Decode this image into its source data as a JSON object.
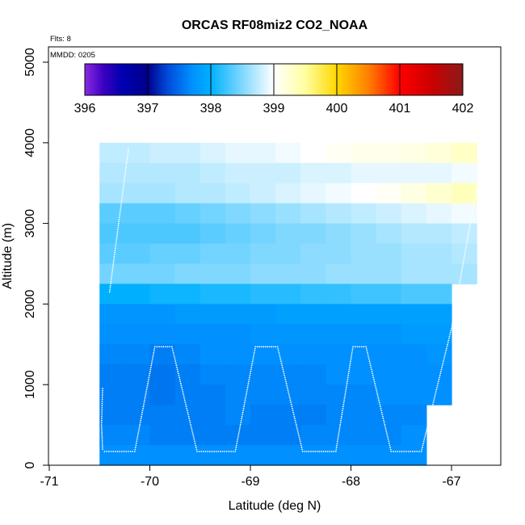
{
  "chart_data": {
    "type": "heatmap",
    "title": "ORCAS RF08miz2 CO2_NOAA",
    "annotations": {
      "flights": "Flts: 8",
      "date": "MMDD: 0205"
    },
    "xlabel": "Latitude (deg N)",
    "ylabel": "Altitude (m)",
    "xlim": [
      -71,
      -66.5
    ],
    "ylim": [
      0,
      5200
    ],
    "x_ticks": [
      -71,
      -70,
      -69,
      -68,
      -67
    ],
    "y_ticks": [
      0,
      1000,
      2000,
      3000,
      4000,
      5000
    ],
    "grid": false,
    "colorbar": {
      "position": "top-inside",
      "min": 396,
      "max": 402,
      "ticks": [
        396,
        397,
        398,
        399,
        400,
        401,
        402
      ],
      "stops": [
        {
          "value": 396.0,
          "color": "#8a2be2"
        },
        {
          "value": 396.3,
          "color": "#3a00c0"
        },
        {
          "value": 396.6,
          "color": "#0000b0"
        },
        {
          "value": 397.0,
          "color": "#00008b"
        },
        {
          "value": 397.3,
          "color": "#0048d8"
        },
        {
          "value": 397.7,
          "color": "#0090ff"
        },
        {
          "value": 398.0,
          "color": "#00b0ff"
        },
        {
          "value": 398.5,
          "color": "#80d8ff"
        },
        {
          "value": 399.0,
          "color": "#ffffff"
        },
        {
          "value": 399.5,
          "color": "#ffffa0"
        },
        {
          "value": 400.0,
          "color": "#ffd700"
        },
        {
          "value": 400.5,
          "color": "#ff8000"
        },
        {
          "value": 401.0,
          "color": "#ff0000"
        },
        {
          "value": 401.5,
          "color": "#cc0000"
        },
        {
          "value": 402.0,
          "color": "#8b1a1a"
        }
      ]
    },
    "cells": [
      {
        "lat_from": -70.5,
        "lat_to": -66.75,
        "alt_from": 3750,
        "alt_to": 4000,
        "values": [
          398.75,
          398.75,
          398.8,
          398.8,
          398.85,
          398.9,
          398.9,
          398.95,
          399.0,
          399.05,
          399.1,
          399.1,
          399.15,
          399.2,
          399.3
        ]
      },
      {
        "lat_from": -70.5,
        "lat_to": -66.75,
        "alt_from": 3500,
        "alt_to": 3750,
        "values": [
          398.7,
          398.7,
          398.7,
          398.7,
          398.75,
          398.8,
          398.8,
          398.8,
          398.85,
          398.85,
          398.9,
          398.9,
          398.9,
          398.9,
          398.95
        ]
      },
      {
        "lat_from": -70.5,
        "lat_to": -66.75,
        "alt_from": 3250,
        "alt_to": 3500,
        "values": [
          398.65,
          398.65,
          398.65,
          398.7,
          398.7,
          398.75,
          398.8,
          398.85,
          398.9,
          398.95,
          399.0,
          399.05,
          399.15,
          399.25,
          399.35
        ]
      },
      {
        "lat_from": -70.5,
        "lat_to": -66.75,
        "alt_from": 3000,
        "alt_to": 3250,
        "values": [
          398.35,
          398.35,
          398.35,
          398.4,
          398.45,
          398.5,
          398.55,
          398.6,
          398.65,
          398.7,
          398.75,
          398.8,
          398.85,
          398.9,
          398.95
        ]
      },
      {
        "lat_from": -70.5,
        "lat_to": -66.75,
        "alt_from": 2750,
        "alt_to": 3000,
        "values": [
          398.3,
          398.3,
          398.3,
          398.3,
          398.35,
          398.4,
          398.45,
          398.5,
          398.5,
          398.55,
          398.6,
          398.65,
          398.7,
          398.7,
          398.75
        ]
      },
      {
        "lat_from": -70.5,
        "lat_to": -66.75,
        "alt_from": 2500,
        "alt_to": 2750,
        "values": [
          398.35,
          398.35,
          398.4,
          398.4,
          398.45,
          398.45,
          398.5,
          398.5,
          398.55,
          398.55,
          398.6,
          398.6,
          398.65,
          398.65,
          398.7
        ]
      },
      {
        "lat_from": -70.5,
        "lat_to": -66.75,
        "alt_from": 2250,
        "alt_to": 2500,
        "values": [
          398.45,
          398.45,
          398.45,
          398.5,
          398.5,
          398.5,
          398.55,
          398.55,
          398.55,
          398.6,
          398.6,
          398.6,
          398.65,
          398.65,
          398.65
        ]
      },
      {
        "lat_from": -70.5,
        "lat_to": -67.0,
        "alt_from": 2000,
        "alt_to": 2250,
        "values": [
          398.0,
          398.0,
          398.05,
          398.05,
          398.1,
          398.1,
          398.15,
          398.15,
          398.2,
          398.2,
          398.25,
          398.25,
          398.3,
          398.3
        ]
      },
      {
        "lat_from": -70.5,
        "lat_to": -67.0,
        "alt_from": 1750,
        "alt_to": 2000,
        "values": [
          397.75,
          397.75,
          397.75,
          397.8,
          397.8,
          397.8,
          397.8,
          397.85,
          397.85,
          397.85,
          397.85,
          397.85,
          397.85,
          397.85
        ]
      },
      {
        "lat_from": -70.5,
        "lat_to": -67.0,
        "alt_from": 1500,
        "alt_to": 1750,
        "values": [
          397.7,
          397.7,
          397.7,
          397.7,
          397.7,
          397.7,
          397.75,
          397.75,
          397.75,
          397.75,
          397.75,
          397.75,
          397.8,
          397.8
        ]
      },
      {
        "lat_from": -70.5,
        "lat_to": -67.0,
        "alt_from": 1250,
        "alt_to": 1500,
        "values": [
          397.65,
          397.65,
          397.6,
          397.65,
          397.7,
          397.7,
          397.7,
          397.7,
          397.7,
          397.7,
          397.7,
          397.7,
          397.7,
          397.75
        ]
      },
      {
        "lat_from": -70.5,
        "lat_to": -67.0,
        "alt_from": 1000,
        "alt_to": 1250,
        "values": [
          397.6,
          397.6,
          397.55,
          397.6,
          397.65,
          397.65,
          397.65,
          397.65,
          397.65,
          397.7,
          397.7,
          397.7,
          397.7,
          397.7
        ]
      },
      {
        "lat_from": -70.5,
        "lat_to": -67.0,
        "alt_from": 750,
        "alt_to": 1000,
        "values": [
          397.6,
          397.6,
          397.55,
          397.6,
          397.6,
          397.65,
          397.65,
          397.65,
          397.65,
          397.65,
          397.65,
          397.7,
          397.7,
          397.7
        ]
      },
      {
        "lat_from": -70.5,
        "lat_to": -67.25,
        "alt_from": 500,
        "alt_to": 750,
        "values": [
          397.6,
          397.6,
          397.6,
          397.6,
          397.6,
          397.65,
          397.6,
          397.6,
          397.6,
          397.65,
          397.65,
          397.65,
          397.65
        ]
      },
      {
        "lat_from": -70.5,
        "lat_to": -67.25,
        "alt_from": 250,
        "alt_to": 500,
        "values": [
          397.65,
          397.65,
          397.6,
          397.6,
          397.6,
          397.6,
          397.6,
          397.6,
          397.65,
          397.65,
          397.65,
          397.65,
          397.7
        ]
      },
      {
        "lat_from": -70.5,
        "lat_to": -67.25,
        "alt_from": 0,
        "alt_to": 250,
        "values": [
          397.7,
          397.7,
          397.7,
          397.7,
          397.7,
          397.7,
          397.7,
          397.7,
          397.7,
          397.7,
          397.7,
          397.7,
          397.7
        ]
      }
    ],
    "flight_track": {
      "color": "#ffffff",
      "points": [
        [
          -70.47,
          950
        ],
        [
          -70.48,
          500
        ],
        [
          -70.47,
          200
        ],
        [
          -70.45,
          170
        ],
        [
          -70.15,
          170
        ],
        [
          -69.95,
          1470
        ],
        [
          -69.78,
          1470
        ],
        [
          -69.53,
          170
        ],
        [
          -69.15,
          170
        ],
        [
          -68.95,
          1470
        ],
        [
          -68.73,
          1470
        ],
        [
          -68.48,
          170
        ],
        [
          -68.15,
          170
        ],
        [
          -67.98,
          1470
        ],
        [
          -67.85,
          1470
        ],
        [
          -67.6,
          170
        ],
        [
          -67.3,
          170
        ],
        [
          -67.0,
          1700
        ],
        [
          -66.72,
          3650
        ]
      ],
      "upper_segment": [
        [
          -70.4,
          2150
        ],
        [
          -70.21,
          3950
        ]
      ]
    }
  }
}
